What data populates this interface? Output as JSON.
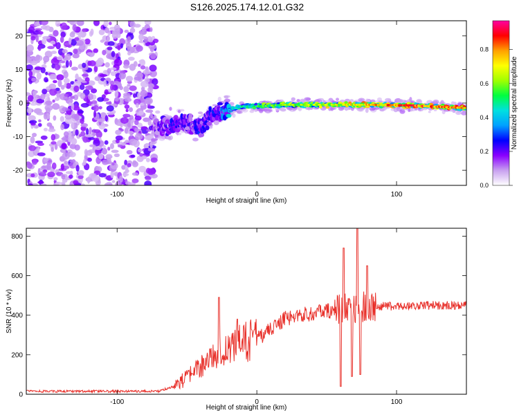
{
  "title": "S126.2025.174.12.01.G32",
  "chart_data": [
    {
      "type": "heatmap",
      "xlabel": "Height of straight line (km)",
      "ylabel": "Frequency (Hz)",
      "xlim": [
        -165,
        150
      ],
      "ylim": [
        -24.5,
        24.5
      ],
      "x_ticks": [
        -100,
        0,
        100
      ],
      "y_ticks": [
        -20,
        -10,
        0,
        10,
        20
      ],
      "grid": false,
      "colorbar": {
        "label": "Normalized spectral amplitude",
        "range": [
          0,
          0.97
        ],
        "ticks": [
          "0.0",
          "0.2",
          "0.4",
          "0.6",
          "0.8"
        ],
        "colormap": [
          "#ffffff",
          "#c8a0f0",
          "#8a00ff",
          "#0000ff",
          "#00a0ff",
          "#00e0e0",
          "#00ff40",
          "#a0ff00",
          "#ffff00",
          "#ffa000",
          "#ff0000",
          "#ff00a0"
        ]
      },
      "ridge": {
        "x": [
          -72,
          -60,
          -50,
          -40,
          -30,
          -20,
          -10,
          0,
          20,
          50,
          80,
          110,
          150
        ],
        "frequency": [
          -7.5,
          -6.5,
          -6,
          -7,
          -3,
          -2,
          -1,
          -1,
          -0.5,
          -0.5,
          -0.5,
          -0.7,
          -1.5
        ],
        "peak_amplitude": [
          0.2,
          0.3,
          0.25,
          0.3,
          0.3,
          0.45,
          0.55,
          0.6,
          0.7,
          0.75,
          0.85,
          0.95,
          0.9
        ]
      },
      "noise_region_x": [
        -165,
        -72
      ]
    },
    {
      "type": "line",
      "xlabel": "Height of straight line (km)",
      "ylabel": "SNR (10 * v/v)",
      "xlim": [
        -165,
        150
      ],
      "ylim": [
        0,
        840
      ],
      "x_ticks": [
        -100,
        0,
        100
      ],
      "y_ticks": [
        0,
        200,
        400,
        600,
        800
      ],
      "grid": false,
      "color": "#e8302a",
      "trend": {
        "x": [
          -165,
          -120,
          -70,
          -60,
          -50,
          -40,
          -30,
          -20,
          -10,
          0,
          10,
          20,
          30,
          40,
          50,
          60,
          70,
          80,
          90,
          100,
          120,
          150
        ],
        "y": [
          15,
          15,
          15,
          40,
          80,
          140,
          200,
          240,
          260,
          280,
          330,
          380,
          400,
          410,
          420,
          430,
          440,
          440,
          445,
          445,
          450,
          450
        ]
      },
      "spikes": [
        {
          "x": -27,
          "y": 490
        },
        {
          "x": -14,
          "y": 380
        },
        {
          "x": 60,
          "y": 40
        },
        {
          "x": 62,
          "y": 740
        },
        {
          "x": 68,
          "y": 90
        },
        {
          "x": 72,
          "y": 840
        },
        {
          "x": 74,
          "y": 100
        },
        {
          "x": 79,
          "y": 650
        }
      ]
    }
  ]
}
